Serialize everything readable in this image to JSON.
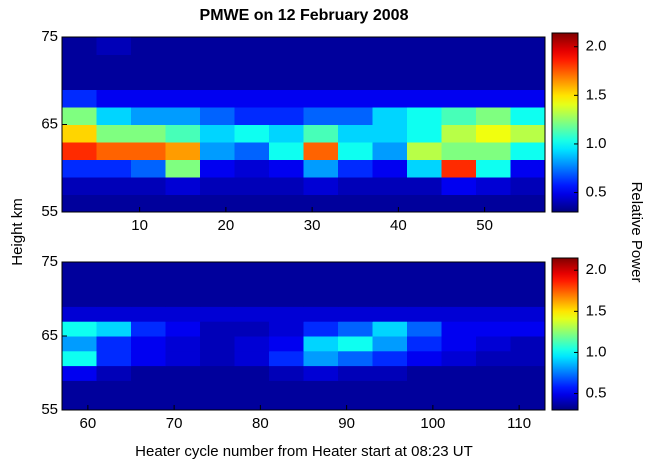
{
  "chart_data": [
    {
      "type": "heatmap",
      "title": "PMWE on 12 February 2008",
      "ylabel": "Height km",
      "colorbar_label": "Relative Power",
      "colormap": "jet",
      "clim": [
        0.3,
        2.1
      ],
      "cticks": [
        0.5,
        {
          "value": 1.0,
          "label": "1.0"
        },
        1.5,
        {
          "value": 2.0,
          "label": "2.0"
        }
      ],
      "xlim": [
        1,
        57
      ],
      "xticks": [
        10,
        20,
        30,
        40,
        50
      ],
      "ylim": [
        55,
        75
      ],
      "yticks": [
        55,
        65,
        75
      ],
      "xbins": [
        1,
        5,
        9,
        13,
        17,
        21,
        25,
        29,
        33,
        37,
        41,
        45,
        49,
        53,
        57
      ],
      "ybins": [
        55,
        57,
        59,
        61,
        63,
        65,
        67,
        69,
        71,
        73,
        75
      ],
      "values": [
        [
          0.35,
          0.35,
          0.35,
          0.35,
          0.35,
          0.35,
          0.35,
          0.35,
          0.35,
          0.35,
          0.35,
          0.35,
          0.35,
          0.35
        ],
        [
          0.4,
          0.4,
          0.4,
          0.45,
          0.4,
          0.4,
          0.4,
          0.45,
          0.4,
          0.4,
          0.4,
          0.5,
          0.45,
          0.4
        ],
        [
          0.6,
          0.6,
          0.7,
          1.2,
          0.5,
          0.45,
          0.5,
          0.8,
          0.6,
          0.5,
          0.9,
          1.8,
          1.0,
          0.5
        ],
        [
          1.8,
          1.7,
          1.7,
          1.6,
          0.8,
          0.7,
          1.0,
          1.7,
          1.0,
          0.8,
          1.3,
          1.2,
          1.2,
          1.0
        ],
        [
          1.5,
          1.2,
          1.2,
          1.1,
          0.9,
          1.0,
          0.9,
          1.1,
          0.9,
          0.9,
          1.0,
          1.3,
          1.4,
          1.3
        ],
        [
          1.2,
          0.9,
          0.8,
          0.8,
          0.7,
          0.6,
          0.6,
          0.7,
          0.7,
          0.9,
          1.0,
          1.1,
          1.2,
          1.0
        ],
        [
          0.6,
          0.5,
          0.5,
          0.5,
          0.5,
          0.5,
          0.5,
          0.5,
          0.5,
          0.5,
          0.5,
          0.5,
          0.5,
          0.5
        ],
        [
          0.35,
          0.35,
          0.35,
          0.35,
          0.35,
          0.35,
          0.35,
          0.35,
          0.35,
          0.35,
          0.35,
          0.35,
          0.35,
          0.35
        ],
        [
          0.35,
          0.35,
          0.35,
          0.35,
          0.35,
          0.35,
          0.35,
          0.35,
          0.35,
          0.35,
          0.35,
          0.35,
          0.35,
          0.35
        ],
        [
          0.35,
          0.4,
          0.35,
          0.35,
          0.35,
          0.35,
          0.35,
          0.35,
          0.35,
          0.35,
          0.35,
          0.35,
          0.35,
          0.35
        ]
      ]
    },
    {
      "type": "heatmap",
      "xlabel": "Heater cycle number from Heater start at 08:23 UT",
      "colormap": "jet",
      "clim": [
        0.3,
        2.1
      ],
      "cticks": [
        0.5,
        {
          "value": 1.0,
          "label": "1.0"
        },
        1.5,
        {
          "value": 2.0,
          "label": "2.0"
        }
      ],
      "xlim": [
        57,
        113
      ],
      "xticks": [
        60,
        70,
        80,
        90,
        100,
        110
      ],
      "ylim": [
        55,
        75
      ],
      "yticks": [
        55,
        65,
        75
      ],
      "xbins": [
        57,
        61,
        65,
        69,
        73,
        77,
        81,
        85,
        89,
        93,
        97,
        101,
        105,
        109,
        113
      ],
      "ybins": [
        55,
        57,
        59,
        61,
        63,
        65,
        67,
        69,
        71,
        73,
        75
      ],
      "values": [
        [
          0.35,
          0.35,
          0.35,
          0.35,
          0.35,
          0.35,
          0.35,
          0.35,
          0.35,
          0.35,
          0.35,
          0.35,
          0.35,
          0.35
        ],
        [
          0.35,
          0.35,
          0.35,
          0.35,
          0.35,
          0.35,
          0.35,
          0.35,
          0.35,
          0.35,
          0.35,
          0.35,
          0.35,
          0.35
        ],
        [
          0.5,
          0.4,
          0.35,
          0.35,
          0.35,
          0.35,
          0.4,
          0.45,
          0.4,
          0.4,
          0.35,
          0.35,
          0.35,
          0.35
        ],
        [
          1.0,
          0.6,
          0.5,
          0.45,
          0.4,
          0.45,
          0.6,
          0.8,
          0.7,
          0.6,
          0.5,
          0.45,
          0.4,
          0.4
        ],
        [
          0.8,
          0.6,
          0.5,
          0.45,
          0.4,
          0.45,
          0.5,
          0.9,
          1.0,
          0.8,
          0.6,
          0.5,
          0.45,
          0.4
        ],
        [
          1.0,
          0.9,
          0.6,
          0.5,
          0.4,
          0.4,
          0.45,
          0.6,
          0.7,
          0.9,
          0.7,
          0.5,
          0.5,
          0.5
        ],
        [
          0.45,
          0.45,
          0.45,
          0.45,
          0.45,
          0.45,
          0.45,
          0.45,
          0.45,
          0.45,
          0.45,
          0.45,
          0.45,
          0.45
        ],
        [
          0.35,
          0.35,
          0.35,
          0.35,
          0.35,
          0.35,
          0.35,
          0.35,
          0.35,
          0.35,
          0.35,
          0.35,
          0.35,
          0.35
        ],
        [
          0.35,
          0.35,
          0.35,
          0.35,
          0.35,
          0.35,
          0.35,
          0.35,
          0.35,
          0.35,
          0.35,
          0.35,
          0.35,
          0.35
        ],
        [
          0.35,
          0.35,
          0.35,
          0.35,
          0.35,
          0.35,
          0.35,
          0.35,
          0.35,
          0.35,
          0.35,
          0.35,
          0.35,
          0.35
        ]
      ]
    }
  ]
}
